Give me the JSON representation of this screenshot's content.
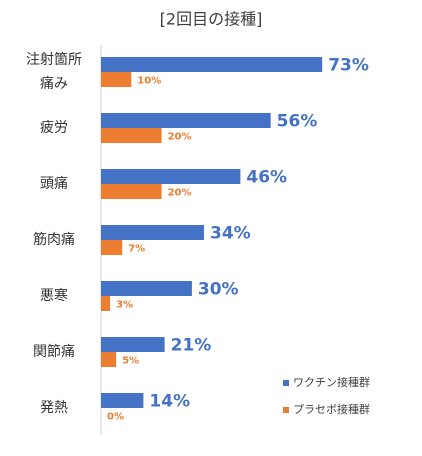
{
  "chart_data": {
    "type": "bar",
    "orientation": "horizontal",
    "title": "[2回目の接種]",
    "categories": [
      "注射箇所痛み",
      "疲労",
      "頭痛",
      "筋肉痛",
      "悪寒",
      "関節痛",
      "発熱"
    ],
    "series": [
      {
        "name": "ワクチン接種群",
        "color": "#4472c4",
        "values": [
          73,
          56,
          46,
          34,
          30,
          21,
          14
        ],
        "value_labels": [
          "73%",
          "56%",
          "46%",
          "34%",
          "30%",
          "21%",
          "14%"
        ]
      },
      {
        "name": "プラセボ接種群",
        "color": "#ed7d31",
        "values": [
          10,
          20,
          20,
          7,
          3,
          5,
          0
        ],
        "value_labels": [
          "10%",
          "20%",
          "20%",
          "7%",
          "3%",
          "5%",
          "0%"
        ]
      }
    ],
    "legend": "lower right"
  }
}
